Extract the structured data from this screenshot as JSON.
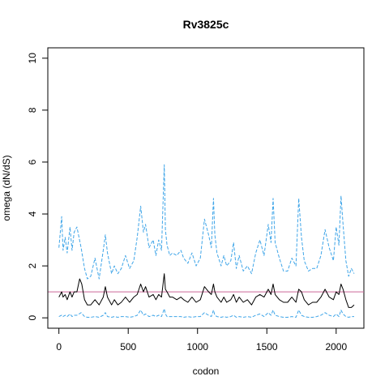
{
  "chart_data": {
    "type": "line",
    "title": "Rv3825c",
    "xlabel": "codon",
    "ylabel": "omega (dN/dS)",
    "xlim": [
      -80,
      2200
    ],
    "ylim": [
      -0.4,
      10.4
    ],
    "xticks": [
      0,
      500,
      1000,
      1500,
      2000
    ],
    "xtick_labels": [
      "0",
      "500",
      "1000",
      "1500",
      "2000"
    ],
    "yticks": [
      0,
      2,
      4,
      6,
      8,
      10
    ],
    "ytick_labels": [
      "0",
      "2",
      "4",
      "6",
      "8",
      "10"
    ],
    "grid": false,
    "reference_line": {
      "y": 1,
      "color": "#cc6699"
    },
    "series": [
      {
        "role": "upper-bound",
        "style": "dashed",
        "color": "#3fa5e8",
        "x": [
          0,
          20,
          30,
          45,
          60,
          80,
          95,
          110,
          130,
          160,
          185,
          205,
          230,
          260,
          290,
          320,
          335,
          350,
          380,
          400,
          425,
          450,
          480,
          510,
          540,
          565,
          590,
          610,
          625,
          650,
          680,
          700,
          720,
          740,
          760,
          768,
          780,
          800,
          820,
          850,
          880,
          900,
          930,
          960,
          990,
          1020,
          1050,
          1080,
          1100,
          1115,
          1125,
          1140,
          1170,
          1190,
          1210,
          1240,
          1260,
          1280,
          1300,
          1330,
          1360,
          1390,
          1420,
          1450,
          1480,
          1510,
          1530,
          1545,
          1560,
          1590,
          1620,
          1650,
          1680,
          1710,
          1730,
          1750,
          1770,
          1800,
          1830,
          1860,
          1890,
          1920,
          1950,
          1980,
          2000,
          2020,
          2035,
          2050,
          2070,
          2090,
          2110,
          2130
        ],
        "y": [
          2.7,
          3.9,
          2.6,
          3.1,
          2.5,
          3.5,
          2.6,
          3.3,
          3.5,
          2.7,
          1.9,
          1.5,
          1.6,
          2.3,
          1.5,
          2.6,
          3.2,
          2.5,
          1.7,
          2.0,
          1.7,
          1.9,
          2.4,
          1.9,
          2.2,
          3.1,
          4.3,
          3.3,
          3.6,
          2.7,
          3.0,
          2.4,
          3.0,
          2.6,
          5.9,
          3.4,
          2.8,
          2.4,
          2.5,
          2.4,
          2.6,
          2.3,
          2.1,
          2.5,
          2.0,
          2.3,
          3.8,
          3.2,
          2.7,
          4.6,
          3.2,
          2.5,
          2.0,
          2.4,
          2.0,
          2.2,
          2.9,
          1.9,
          2.4,
          1.8,
          2.0,
          1.7,
          2.5,
          3.0,
          2.4,
          3.6,
          2.9,
          4.6,
          2.9,
          2.3,
          1.8,
          1.8,
          2.3,
          2.0,
          4.6,
          3.1,
          2.2,
          1.8,
          1.9,
          1.9,
          2.4,
          3.4,
          2.7,
          2.2,
          3.5,
          2.8,
          4.7,
          3.6,
          2.2,
          1.6,
          1.9,
          1.7
        ]
      },
      {
        "role": "estimate",
        "style": "solid",
        "color": "#000000",
        "x": [
          0,
          20,
          30,
          45,
          60,
          80,
          95,
          110,
          130,
          150,
          165,
          185,
          205,
          230,
          260,
          290,
          320,
          335,
          350,
          380,
          400,
          425,
          450,
          480,
          510,
          540,
          565,
          590,
          610,
          625,
          650,
          680,
          700,
          720,
          740,
          760,
          768,
          780,
          800,
          820,
          850,
          880,
          900,
          930,
          960,
          990,
          1020,
          1050,
          1080,
          1100,
          1115,
          1125,
          1140,
          1170,
          1190,
          1210,
          1240,
          1260,
          1280,
          1300,
          1330,
          1360,
          1390,
          1420,
          1450,
          1480,
          1510,
          1530,
          1545,
          1560,
          1590,
          1620,
          1650,
          1680,
          1710,
          1730,
          1750,
          1770,
          1800,
          1830,
          1860,
          1890,
          1920,
          1950,
          1980,
          2000,
          2020,
          2035,
          2050,
          2070,
          2090,
          2110,
          2130
        ],
        "y": [
          0.8,
          1.0,
          0.8,
          0.9,
          0.7,
          1.0,
          0.8,
          1.0,
          1.0,
          1.5,
          1.3,
          0.7,
          0.5,
          0.5,
          0.7,
          0.5,
          0.8,
          1.2,
          0.8,
          0.5,
          0.7,
          0.5,
          0.6,
          0.8,
          0.6,
          0.8,
          0.9,
          1.3,
          1.0,
          1.2,
          0.8,
          0.9,
          0.7,
          0.9,
          0.8,
          1.7,
          1.1,
          1.0,
          0.8,
          0.8,
          0.7,
          0.8,
          0.7,
          0.6,
          0.8,
          0.6,
          0.7,
          1.2,
          1.0,
          0.9,
          1.3,
          1.0,
          0.8,
          0.6,
          0.8,
          0.6,
          0.7,
          0.9,
          0.6,
          0.8,
          0.6,
          0.7,
          0.5,
          0.8,
          0.9,
          0.8,
          1.1,
          0.9,
          1.3,
          0.9,
          0.7,
          0.6,
          0.6,
          0.8,
          0.6,
          1.1,
          1.0,
          0.7,
          0.5,
          0.6,
          0.6,
          0.8,
          1.1,
          0.8,
          0.7,
          1.0,
          0.9,
          1.3,
          1.1,
          0.7,
          0.4,
          0.4,
          0.5
        ]
      },
      {
        "role": "lower-bound",
        "style": "dashed",
        "color": "#3fa5e8",
        "x": [
          0,
          20,
          30,
          45,
          60,
          80,
          95,
          110,
          130,
          160,
          185,
          205,
          230,
          260,
          290,
          320,
          335,
          350,
          380,
          400,
          425,
          450,
          480,
          510,
          540,
          565,
          590,
          610,
          625,
          650,
          680,
          700,
          720,
          740,
          760,
          768,
          780,
          800,
          820,
          850,
          880,
          900,
          930,
          960,
          990,
          1020,
          1050,
          1080,
          1100,
          1115,
          1125,
          1140,
          1170,
          1190,
          1210,
          1240,
          1260,
          1280,
          1300,
          1330,
          1360,
          1390,
          1420,
          1450,
          1480,
          1510,
          1530,
          1545,
          1560,
          1590,
          1620,
          1650,
          1680,
          1710,
          1730,
          1750,
          1770,
          1800,
          1830,
          1860,
          1890,
          1920,
          1950,
          1980,
          2000,
          2020,
          2035,
          2050,
          2070,
          2090,
          2110,
          2130
        ],
        "y": [
          0.05,
          0.1,
          0.05,
          0.1,
          0.05,
          0.15,
          0.05,
          0.1,
          0.1,
          0.2,
          0.05,
          0.02,
          0.02,
          0.05,
          0.02,
          0.1,
          0.2,
          0.05,
          0.02,
          0.05,
          0.02,
          0.05,
          0.05,
          0.02,
          0.05,
          0.1,
          0.3,
          0.1,
          0.15,
          0.05,
          0.1,
          0.05,
          0.1,
          0.05,
          0.35,
          0.15,
          0.05,
          0.05,
          0.05,
          0.05,
          0.05,
          0.02,
          0.05,
          0.02,
          0.05,
          0.05,
          0.2,
          0.1,
          0.05,
          0.3,
          0.1,
          0.05,
          0.02,
          0.05,
          0.02,
          0.05,
          0.1,
          0.02,
          0.05,
          0.02,
          0.05,
          0.02,
          0.1,
          0.15,
          0.05,
          0.2,
          0.1,
          0.3,
          0.1,
          0.05,
          0.02,
          0.02,
          0.05,
          0.02,
          0.3,
          0.1,
          0.05,
          0.02,
          0.02,
          0.05,
          0.1,
          0.2,
          0.1,
          0.05,
          0.15,
          0.05,
          0.3,
          0.15,
          0.05,
          0.02,
          0.05,
          0.05
        ]
      }
    ]
  }
}
